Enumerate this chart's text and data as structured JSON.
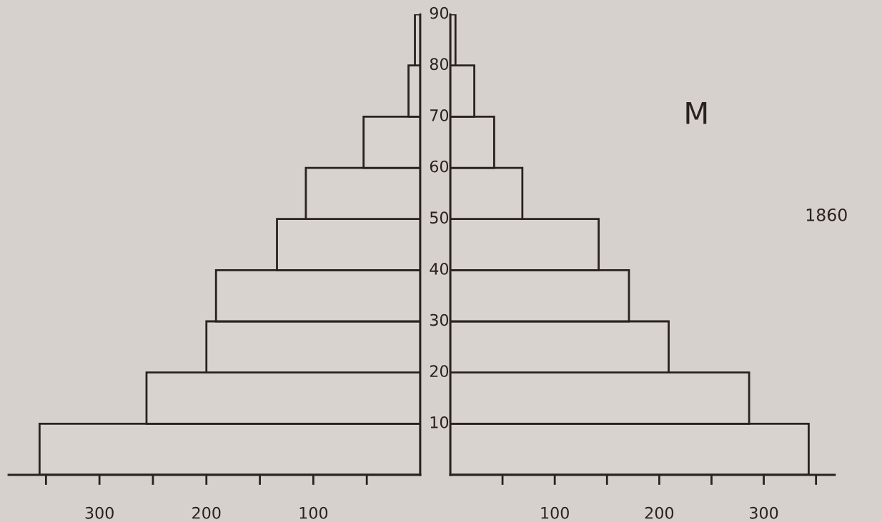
{
  "chart_data": [
    {
      "type": "histogram",
      "orientation": "horizontal",
      "bins": [
        0,
        10,
        20,
        30,
        40,
        50,
        60,
        70,
        80,
        90
      ],
      "values": [
        356,
        256,
        200,
        191,
        134,
        107,
        53,
        11,
        5
      ],
      "color": "#d8d3ce",
      "xlim": [
        385,
        0
      ],
      "xticks": [
        {
          "value": 350,
          "label": null
        },
        300,
        {
          "value": 250,
          "label": null
        },
        200,
        {
          "value": 150,
          "label": null
        },
        100,
        {
          "value": 50,
          "label": null
        }
      ],
      "ylim": [
        0,
        90
      ],
      "yticks": [
        10,
        20,
        30,
        40,
        50,
        60,
        70,
        80,
        90
      ],
      "tick_labels": "x",
      "grid": false
    },
    {
      "type": "histogram",
      "orientation": "horizontal",
      "bins": [
        0,
        10,
        20,
        30,
        40,
        50,
        60,
        70,
        80,
        90
      ],
      "series": [
        {
          "name": "M",
          "color": "#d8d3ce",
          "values": [
            343,
            286,
            209,
            171,
            142,
            69,
            42,
            23,
            5
          ]
        }
      ],
      "xlim": [
        0,
        368
      ],
      "xticks": [
        {
          "value": 50,
          "label": null
        },
        100,
        {
          "value": 150,
          "label": null
        },
        200,
        {
          "value": 250,
          "label": null
        },
        300,
        {
          "value": 350,
          "label": null
        }
      ],
      "ylim": [
        0,
        90
      ],
      "yticks": [
        10,
        20,
        30,
        40,
        50,
        60,
        70,
        80,
        90
      ],
      "grid": false,
      "annotations": [
        "1860"
      ]
    }
  ]
}
